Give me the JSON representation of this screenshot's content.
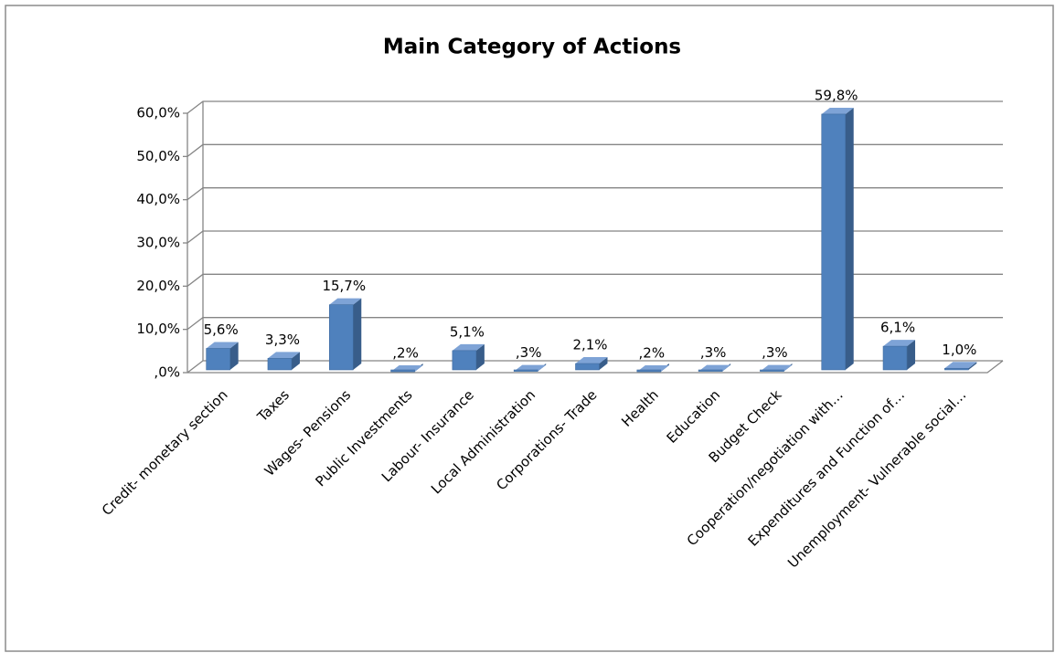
{
  "chart_data": {
    "type": "bar3d",
    "title": "Main Category of Actions",
    "categories": [
      "Credit- monetary section",
      "Taxes",
      "Wages- Pensions",
      "Public Investments",
      "Labour- Insurance",
      "Local Administration",
      "Corporations- Trade",
      "Health",
      "Education",
      "Budget Check",
      "Cooperation/negotiation with…",
      "Expenditures and Function of…",
      "Unemployment- Vulnerable social…"
    ],
    "values": [
      5.6,
      3.3,
      15.7,
      0.2,
      5.1,
      0.3,
      2.1,
      0.2,
      0.3,
      0.3,
      59.8,
      6.1,
      1.0
    ],
    "value_labels": [
      "5,6%",
      "3,3%",
      "15,7%",
      ",2%",
      "5,1%",
      ",3%",
      "2,1%",
      ",2%",
      ",3%",
      ",3%",
      "59,8%",
      "6,1%",
      "1,0%"
    ],
    "color": "#4f81bd",
    "ylim": [
      0,
      60
    ],
    "yticks": [
      {
        "value": 0,
        "label": ",0%"
      },
      {
        "value": 10,
        "label": "10,0%"
      },
      {
        "value": 20,
        "label": "20,0%"
      },
      {
        "value": 30,
        "label": "30,0%"
      },
      {
        "value": 40,
        "label": "40,0%"
      },
      {
        "value": 50,
        "label": "50,0%"
      },
      {
        "value": 60,
        "label": "60,0%"
      }
    ],
    "grid": true
  }
}
